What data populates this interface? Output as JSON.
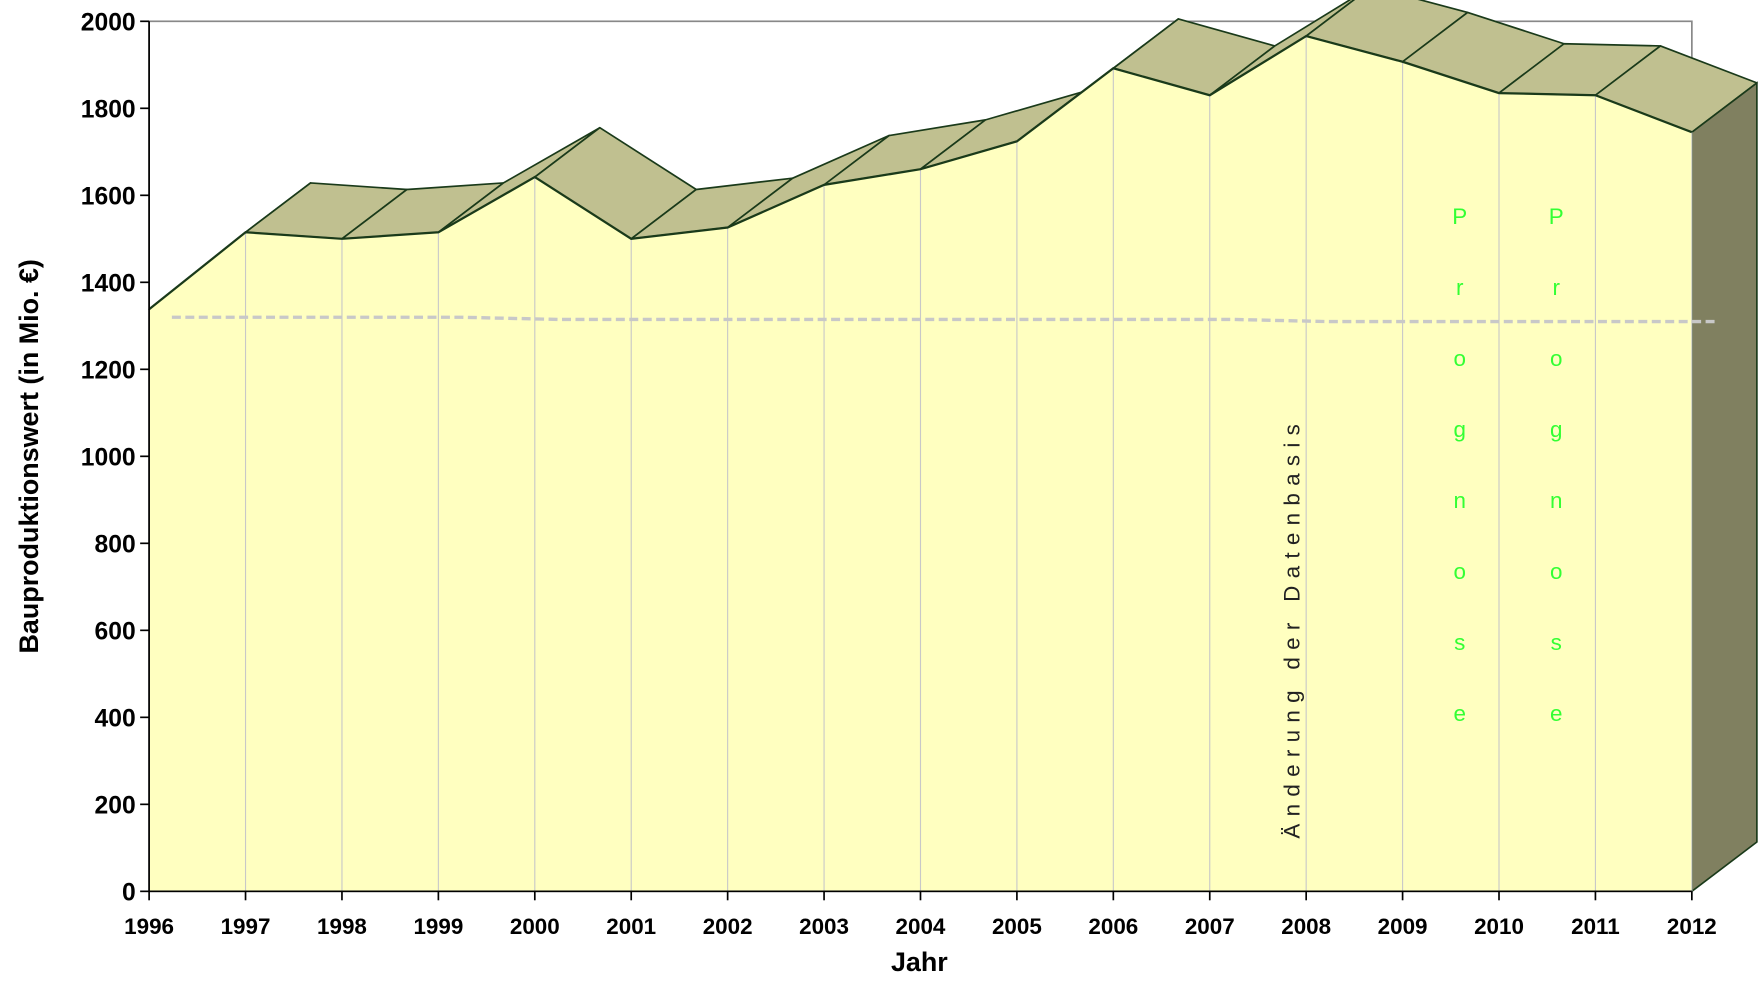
{
  "chart_data": {
    "type": "area3d",
    "x": [
      1996,
      1997,
      1998,
      1999,
      2000,
      2001,
      2002,
      2003,
      2004,
      2005,
      2006,
      2007,
      2008,
      2009,
      2010,
      2011,
      2012
    ],
    "series": [
      {
        "color": "#ffffc0",
        "top_color": "#c0c090",
        "side_color": "#808060",
        "values": [
          1338,
          1515,
          1500,
          1515,
          1642,
          1500,
          1526,
          1624,
          1660,
          1724,
          1892,
          1830,
          1966,
          1907,
          1835,
          1830,
          1745
        ]
      },
      {
        "color": "#c8c8c8",
        "style": "dashed",
        "values": [
          1280,
          1280,
          1280,
          1280,
          1275,
          1275,
          1275,
          1275,
          1275,
          1275,
          1275,
          1275,
          1270,
          1270,
          1270,
          1270,
          1270
        ]
      }
    ],
    "xlim": [
      1996,
      2012
    ],
    "xticks": [
      1996,
      1997,
      1998,
      1999,
      2000,
      2001,
      2002,
      2003,
      2004,
      2005,
      2006,
      2007,
      2008,
      2009,
      2010,
      2011,
      2012
    ],
    "ylim": [
      0,
      2000
    ],
    "yticks": [
      0,
      200,
      400,
      600,
      800,
      1000,
      1200,
      1400,
      1600,
      1800,
      2000
    ],
    "xlabel": "Jahr",
    "ylabel": "Bauproduktionswert (in Mio. €)",
    "grid": true,
    "annotations": [
      {
        "text": "Änderung der Datenbasis",
        "x": 2008
      },
      {
        "text": "Prognose",
        "x": 2011,
        "color": "#33ff33"
      },
      {
        "text": "Prognose",
        "x": 2012,
        "color": "#33ff33"
      }
    ]
  }
}
